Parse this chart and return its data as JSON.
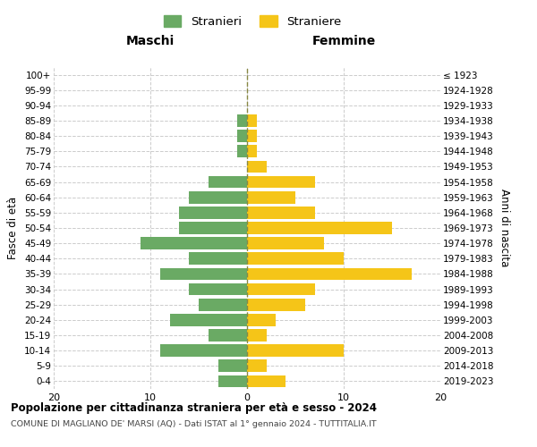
{
  "age_groups": [
    "0-4",
    "5-9",
    "10-14",
    "15-19",
    "20-24",
    "25-29",
    "30-34",
    "35-39",
    "40-44",
    "45-49",
    "50-54",
    "55-59",
    "60-64",
    "65-69",
    "70-74",
    "75-79",
    "80-84",
    "85-89",
    "90-94",
    "95-99",
    "100+"
  ],
  "birth_years": [
    "2019-2023",
    "2014-2018",
    "2009-2013",
    "2004-2008",
    "1999-2003",
    "1994-1998",
    "1989-1993",
    "1984-1988",
    "1979-1983",
    "1974-1978",
    "1969-1973",
    "1964-1968",
    "1959-1963",
    "1954-1958",
    "1949-1953",
    "1944-1948",
    "1939-1943",
    "1934-1938",
    "1929-1933",
    "1924-1928",
    "≤ 1923"
  ],
  "males": [
    3,
    3,
    9,
    4,
    8,
    5,
    6,
    9,
    6,
    11,
    7,
    7,
    6,
    4,
    0,
    1,
    1,
    1,
    0,
    0,
    0
  ],
  "females": [
    4,
    2,
    10,
    2,
    3,
    6,
    7,
    17,
    10,
    8,
    15,
    7,
    5,
    7,
    2,
    1,
    1,
    1,
    0,
    0,
    0
  ],
  "male_color": "#6aaa64",
  "female_color": "#f5c518",
  "title": "Popolazione per cittadinanza straniera per età e sesso - 2024",
  "subtitle": "COMUNE DI MAGLIANO DE' MARSI (AQ) - Dati ISTAT al 1° gennaio 2024 - TUTTITALIA.IT",
  "legend_male": "Stranieri",
  "legend_female": "Straniere",
  "header_left": "Maschi",
  "header_right": "Femmine",
  "ylabel_left": "Fasce di età",
  "ylabel_right": "Anni di nascita",
  "xlim": 20,
  "grid_color": "#cccccc",
  "bar_height": 0.8
}
